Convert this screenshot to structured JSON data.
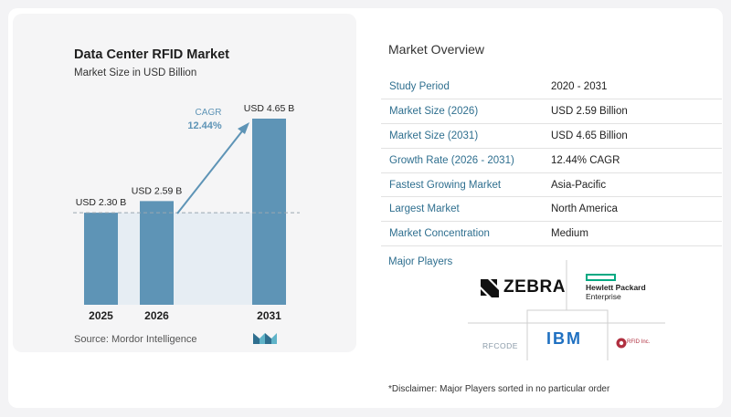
{
  "chart_data": {
    "type": "bar",
    "title": "Data Center RFID Market",
    "subtitle": "Market Size in USD Billion",
    "categories": [
      "2025",
      "2026",
      "2031"
    ],
    "values": [
      2.3,
      2.59,
      4.65
    ],
    "value_labels": [
      "USD 2.30 B",
      "USD 2.59 B",
      "USD 4.65 B"
    ],
    "baseline_reference": 2.3,
    "ylim": [
      0,
      4.65
    ],
    "cagr": {
      "label": "CAGR",
      "value": "12.44%"
    },
    "grid": false,
    "bar_color": "#5e94b6",
    "source": "Source: Mordor Intelligence"
  },
  "overview": {
    "title": "Market Overview",
    "rows": [
      {
        "label": "Study Period",
        "value": "2020 - 2031"
      },
      {
        "label": "Market Size (2026)",
        "value": "USD 2.59 Billion"
      },
      {
        "label": "Market Size (2031)",
        "value": "USD 4.65 Billion"
      },
      {
        "label": "Growth Rate (2026 - 2031)",
        "value": "12.44% CAGR"
      },
      {
        "label": "Fastest Growing Market",
        "value": "Asia-Pacific"
      },
      {
        "label": "Largest Market",
        "value": "North America"
      },
      {
        "label": "Market Concentration",
        "value": "Medium"
      }
    ]
  },
  "players": {
    "title": "Major Players",
    "zebra": "ZEBRA",
    "hpe_line1": "Hewlett Packard",
    "hpe_line2": "Enterprise",
    "ibm": "IBM",
    "rfcode": "RFCODE",
    "rfid_inc": "RFID Inc."
  },
  "disclaimer": "*Disclaimer: Major Players sorted in no particular order",
  "colors": {
    "accent": "#2f6f8f",
    "bar": "#5e94b6",
    "shade": "#e6edf3"
  }
}
